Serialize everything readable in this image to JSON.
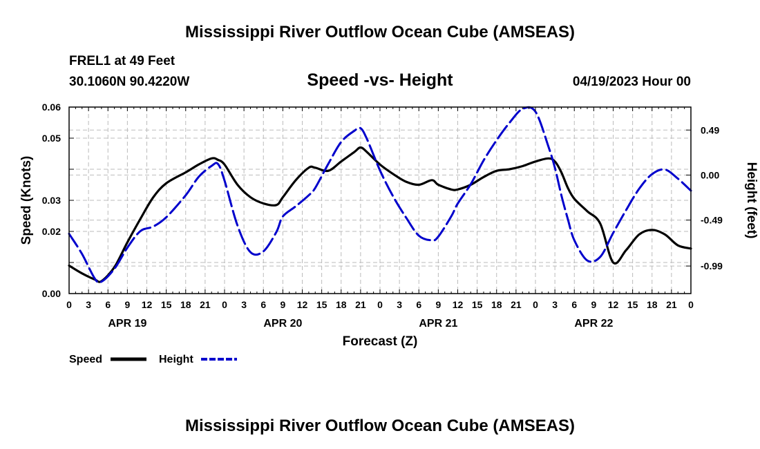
{
  "titles": {
    "main": "Mississippi River Outflow Ocean Cube (AMSEAS)",
    "station": "FREL1 at 49 Feet",
    "location": "30.1060N  90.4220W",
    "plot_title": "Speed -vs- Height",
    "datetime": "04/19/2023 Hour 00",
    "footer": "Mississippi River Outflow Ocean Cube (AMSEAS)"
  },
  "legend": {
    "speed": "Speed",
    "height": "Height"
  },
  "colors": {
    "speed": "#000000",
    "height": "#0000cc",
    "grid": "#bbbbbb",
    "axis": "#000000"
  },
  "chart_data": {
    "type": "line",
    "title": "Speed -vs- Height",
    "xlabel": "Forecast (Z)",
    "ylabel": "Speed (Knots)",
    "y2label": "Height (feet)",
    "xlim": [
      0,
      96
    ],
    "ylim": [
      0.0,
      0.06
    ],
    "y2lim": [
      -1.29,
      0.74
    ],
    "x_tick_step_hours": 3,
    "x_tick_labels": [
      "0",
      "3",
      "6",
      "9",
      "12",
      "15",
      "18",
      "21",
      "0",
      "3",
      "6",
      "9",
      "12",
      "15",
      "18",
      "21",
      "0",
      "3",
      "6",
      "9",
      "12",
      "15",
      "18",
      "21",
      "0",
      "3",
      "6",
      "9",
      "12",
      "15",
      "18",
      "21",
      "0"
    ],
    "date_labels": [
      {
        "hour": 9,
        "label": "APR 19"
      },
      {
        "hour": 33,
        "label": "APR 20"
      },
      {
        "hour": 57,
        "label": "APR 21"
      },
      {
        "hour": 81,
        "label": "APR 22"
      }
    ],
    "y_ticks": [
      {
        "value": 0.0,
        "label": "0.00"
      },
      {
        "value": 0.02,
        "label": "0.02"
      },
      {
        "value": 0.03,
        "label": "0.03"
      },
      {
        "value": 0.05,
        "label": "0.05"
      },
      {
        "value": 0.06,
        "label": "0.06"
      }
    ],
    "y2_ticks": [
      {
        "value": 0.49,
        "label": "0.49"
      },
      {
        "value": 0.0,
        "label": "0.00"
      },
      {
        "value": -0.49,
        "label": "-0.49"
      },
      {
        "value": -0.99,
        "label": "-0.99"
      }
    ],
    "grid": true,
    "series": [
      {
        "name": "Speed",
        "axis": "left",
        "dash": "solid",
        "x": [
          0,
          2,
          4,
          5,
          7,
          9,
          11,
          13,
          15,
          18,
          20,
          22,
          23,
          24,
          26,
          28,
          30,
          32,
          33,
          35,
          37,
          38,
          40,
          42,
          44,
          45,
          46,
          48,
          50,
          52,
          54,
          56,
          57,
          59,
          60,
          62,
          64,
          66,
          68,
          70,
          72,
          74,
          75,
          76,
          77,
          78,
          80,
          82,
          84,
          86,
          88,
          90,
          92,
          94,
          96
        ],
        "y": [
          0.009,
          0.0065,
          0.0045,
          0.004,
          0.0085,
          0.0165,
          0.024,
          0.031,
          0.0355,
          0.039,
          0.0415,
          0.0435,
          0.043,
          0.0415,
          0.035,
          0.031,
          0.029,
          0.0285,
          0.031,
          0.0365,
          0.0405,
          0.0405,
          0.0395,
          0.0425,
          0.0455,
          0.047,
          0.0455,
          0.0415,
          0.0385,
          0.036,
          0.035,
          0.0365,
          0.035,
          0.0335,
          0.0335,
          0.035,
          0.0375,
          0.0395,
          0.04,
          0.041,
          0.0425,
          0.0435,
          0.0425,
          0.039,
          0.034,
          0.0305,
          0.0265,
          0.0225,
          0.01,
          0.014,
          0.019,
          0.0205,
          0.019,
          0.0155,
          0.0145
        ]
      },
      {
        "name": "Height",
        "axis": "right",
        "dash": "dashed",
        "x": [
          0,
          2,
          4,
          5,
          7,
          9,
          11,
          13,
          15,
          18,
          20,
          22,
          23,
          24,
          26,
          28,
          30,
          32,
          33,
          35,
          37,
          38,
          40,
          42,
          44,
          45,
          46,
          48,
          50,
          52,
          54,
          56,
          57,
          59,
          60,
          62,
          64,
          66,
          68,
          70,
          72,
          74,
          75,
          76,
          77,
          78,
          80,
          82,
          84,
          86,
          88,
          90,
          92,
          94,
          96
        ],
        "y": [
          -0.64,
          -0.86,
          -1.13,
          -1.16,
          -1.02,
          -0.79,
          -0.61,
          -0.56,
          -0.46,
          -0.22,
          -0.02,
          0.1,
          0.12,
          -0.06,
          -0.55,
          -0.84,
          -0.83,
          -0.62,
          -0.45,
          -0.34,
          -0.22,
          -0.14,
          0.12,
          0.36,
          0.48,
          0.51,
          0.39,
          0.05,
          -0.23,
          -0.46,
          -0.66,
          -0.71,
          -0.67,
          -0.45,
          -0.31,
          -0.1,
          0.16,
          0.38,
          0.57,
          0.72,
          0.69,
          0.31,
          0.08,
          -0.22,
          -0.48,
          -0.71,
          -0.93,
          -0.89,
          -0.63,
          -0.38,
          -0.15,
          0.01,
          0.06,
          -0.04,
          -0.17
        ]
      }
    ]
  }
}
